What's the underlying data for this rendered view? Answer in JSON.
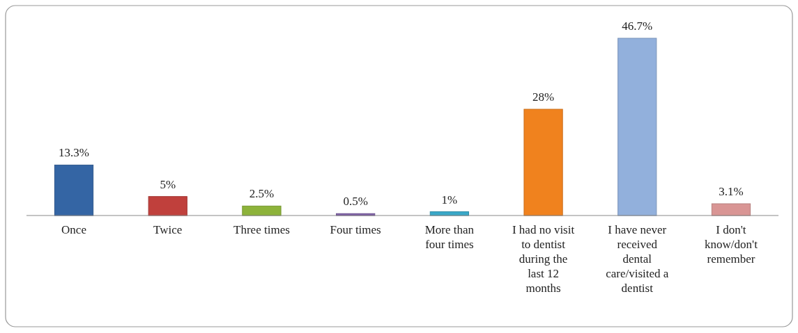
{
  "chart_data": {
    "type": "bar",
    "categories": [
      "Once",
      "Twice",
      "Three times",
      "Four times",
      "More than four times",
      "I had no visit to dentist during the last 12 months",
      "I have never received dental care/visited a dentist",
      "I don't know/don't remember"
    ],
    "values": [
      13.3,
      5,
      2.5,
      0.5,
      1,
      28,
      46.7,
      3.1
    ],
    "value_labels": [
      "13.3%",
      "5%",
      "2.5%",
      "0.5%",
      "1%",
      "28%",
      "46.7%",
      "3.1%"
    ],
    "colors": [
      "#3465a4",
      "#c0403c",
      "#8db33a",
      "#7f5fa8",
      "#3aa8c8",
      "#f0821e",
      "#92b0dc",
      "#d99594"
    ],
    "data_labels": false
  }
}
